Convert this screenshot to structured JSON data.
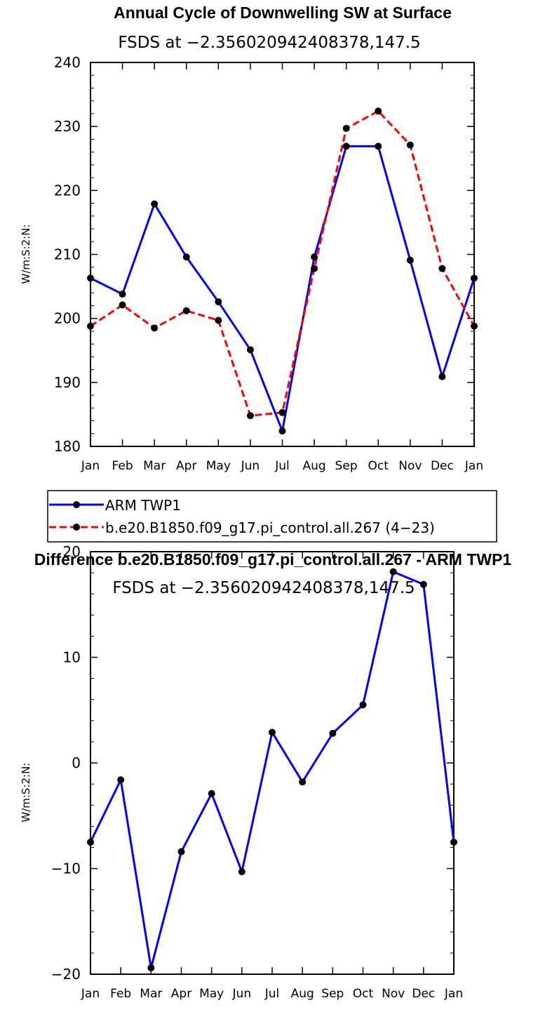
{
  "chart_data": [
    {
      "type": "line",
      "title": "Annual Cycle of Downwelling SW at Surface",
      "subtitle": "FSDS at −2.356020942408378,147.5",
      "ylabel": "W/m:S:2:N:",
      "xlabel": "",
      "categories": [
        "Jan",
        "Feb",
        "Mar",
        "Apr",
        "May",
        "Jun",
        "Jul",
        "Aug",
        "Sep",
        "Oct",
        "Nov",
        "Dec",
        "Jan"
      ],
      "ylim": [
        180,
        240
      ],
      "yticks": [
        "180",
        "190",
        "200",
        "210",
        "220",
        "230",
        "240"
      ],
      "series": [
        {
          "name": "ARM TWP1",
          "color": "#0000ff",
          "style": "solid",
          "values": [
            206.3,
            203.8,
            217.9,
            209.6,
            202.6,
            195.1,
            182.4,
            209.6,
            226.9,
            226.9,
            209.1,
            190.9,
            206.3
          ]
        },
        {
          "name": "b.e20.B1850.f09_g17.pi_control.all.267 (4−23)",
          "color": "#ff0000",
          "style": "dashed",
          "values": [
            198.8,
            202.1,
            198.5,
            201.2,
            199.7,
            184.8,
            185.3,
            207.8,
            229.7,
            232.4,
            227.1,
            207.8,
            198.8
          ]
        }
      ],
      "legend": [
        "ARM TWP1",
        "b.e20.B1850.f09_g17.pi_control.all.267 (4−23)"
      ]
    },
    {
      "type": "line",
      "title": "Difference b.e20.B1850.f09_g17.pi_control.all.267 - ARM TWP1",
      "subtitle": "FSDS at −2.356020942408378,147.5",
      "ylabel": "W/m:S:2:N:",
      "xlabel": "",
      "categories": [
        "Jan",
        "Feb",
        "Mar",
        "Apr",
        "May",
        "Jun",
        "Jul",
        "Aug",
        "Sep",
        "Oct",
        "Nov",
        "Dec",
        "Jan"
      ],
      "ylim": [
        -20,
        20
      ],
      "yticks": [
        "−20",
        "−10",
        "0",
        "10",
        "20"
      ],
      "series": [
        {
          "name": "Difference",
          "color": "#0000ff",
          "style": "solid",
          "values": [
            -7.5,
            -1.6,
            -19.4,
            -8.4,
            -2.9,
            -10.3,
            2.9,
            -1.8,
            2.8,
            5.5,
            18.1,
            16.9,
            -7.5
          ]
        }
      ]
    }
  ]
}
